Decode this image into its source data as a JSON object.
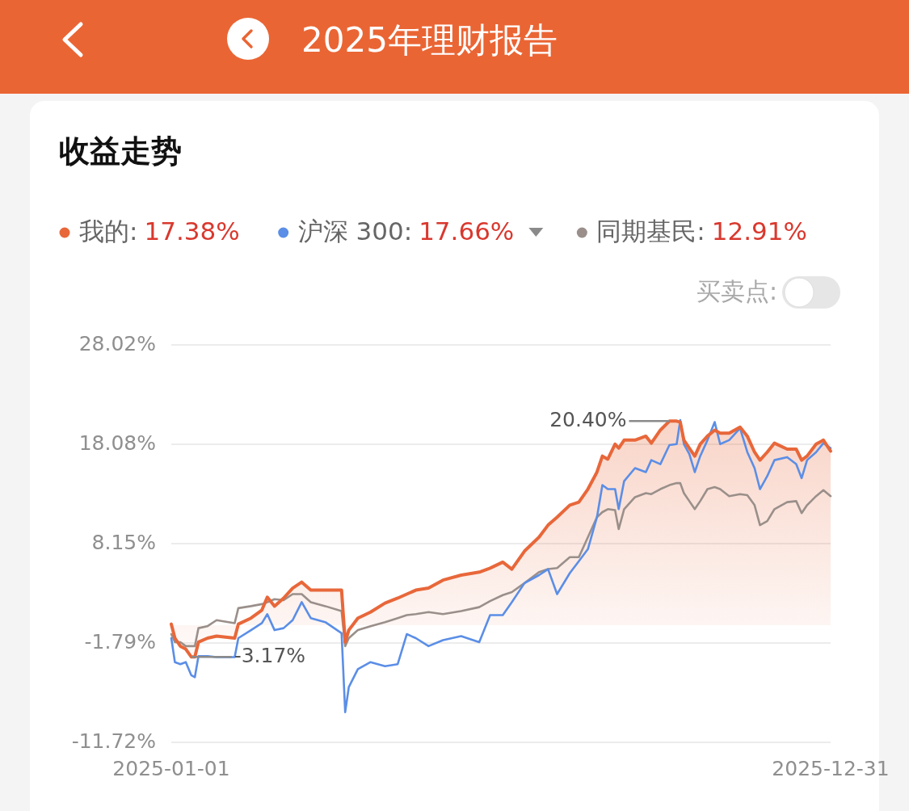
{
  "chart_data": {
    "type": "line",
    "title": "2025年理财报告",
    "subtitle": "收益走势",
    "x": [
      "2025-01-01",
      "2025-01-03",
      "2025-01-06",
      "2025-01-09",
      "2025-01-12",
      "2025-01-14",
      "2025-01-16",
      "2025-01-21",
      "2025-01-26",
      "2025-02-05",
      "2025-02-07",
      "2025-02-14",
      "2025-02-20",
      "2025-02-23",
      "2025-02-27",
      "2025-03-04",
      "2025-03-09",
      "2025-03-14",
      "2025-03-19",
      "2025-03-27",
      "2025-04-05",
      "2025-04-07",
      "2025-04-09",
      "2025-04-14",
      "2025-04-21",
      "2025-04-29",
      "2025-05-06",
      "2025-05-11",
      "2025-05-16",
      "2025-05-23",
      "2025-05-31",
      "2025-06-10",
      "2025-06-20",
      "2025-06-26",
      "2025-07-03",
      "2025-07-08",
      "2025-07-15",
      "2025-07-23",
      "2025-07-28",
      "2025-08-02",
      "2025-08-09",
      "2025-08-14",
      "2025-08-19",
      "2025-08-24",
      "2025-08-27",
      "2025-08-30",
      "2025-09-03",
      "2025-09-05",
      "2025-09-08",
      "2025-09-14",
      "2025-09-20",
      "2025-09-23",
      "2025-09-28",
      "2025-10-03",
      "2025-10-07",
      "2025-10-09",
      "2025-10-11",
      "2025-10-14",
      "2025-10-17",
      "2025-10-20",
      "2025-10-24",
      "2025-10-28",
      "2025-10-31",
      "2025-11-05",
      "2025-11-11",
      "2025-11-15",
      "2025-11-19",
      "2025-11-22",
      "2025-11-26",
      "2025-11-30",
      "2025-12-07",
      "2025-12-12",
      "2025-12-15",
      "2025-12-18",
      "2025-12-23",
      "2025-12-27",
      "2025-12-31"
    ],
    "series": [
      {
        "name": "我的:",
        "type": "area",
        "color": "#e8673a",
        "values": [
          0.1,
          -1.3,
          -2.1,
          -2.4,
          -3.17,
          -3.17,
          -1.7,
          -1.3,
          -1.1,
          -1.3,
          0.1,
          0.7,
          1.5,
          2.8,
          1.9,
          2.7,
          3.7,
          4.3,
          3.5,
          3.5,
          3.5,
          -1.7,
          -0.5,
          0.7,
          1.3,
          2.2,
          2.7,
          3.1,
          3.5,
          3.7,
          4.5,
          5.0,
          5.3,
          5.7,
          6.3,
          5.6,
          7.4,
          8.8,
          10.0,
          10.8,
          12.0,
          12.3,
          13.6,
          15.3,
          16.9,
          16.6,
          18.1,
          17.7,
          18.5,
          18.5,
          18.9,
          18.2,
          19.5,
          20.4,
          20.4,
          20.3,
          18.5,
          17.7,
          16.9,
          18.1,
          18.9,
          19.5,
          19.2,
          19.2,
          19.8,
          18.9,
          17.3,
          16.5,
          17.3,
          18.2,
          17.6,
          17.6,
          16.5,
          16.9,
          18.1,
          18.5,
          17.4
        ]
      },
      {
        "name": "沪深 300:",
        "type": "line",
        "color": "#5b8ee6",
        "values": [
          -1.3,
          -3.7,
          -3.9,
          -3.7,
          -5.0,
          -5.2,
          -3.1,
          -3.1,
          -3.2,
          -3.2,
          -1.3,
          -0.5,
          0.2,
          1.1,
          -0.5,
          -0.3,
          0.5,
          2.3,
          0.7,
          0.3,
          -0.8,
          -8.7,
          -6.2,
          -4.4,
          -3.7,
          -4.1,
          -3.9,
          -0.9,
          -1.3,
          -2.1,
          -1.5,
          -1.1,
          -1.7,
          1.0,
          1.0,
          2.3,
          4.2,
          5.0,
          5.6,
          3.1,
          5.2,
          6.4,
          7.6,
          10.8,
          14.0,
          13.6,
          13.6,
          11.6,
          14.4,
          15.7,
          15.3,
          16.5,
          16.1,
          18.0,
          18.1,
          20.5,
          18.1,
          17.1,
          15.3,
          16.9,
          18.5,
          20.3,
          18.1,
          18.5,
          19.7,
          17.3,
          15.7,
          13.6,
          14.9,
          16.5,
          16.8,
          16.1,
          14.7,
          16.5,
          17.3,
          18.2,
          17.7
        ]
      },
      {
        "name": "同期基民:",
        "type": "line",
        "color": "#9a8f8a",
        "values": [
          -0.9,
          -1.7,
          -1.7,
          -2.1,
          -2.1,
          -2.1,
          -0.3,
          -0.1,
          0.5,
          0.2,
          1.7,
          1.9,
          2.1,
          2.3,
          2.6,
          2.5,
          3.1,
          3.1,
          2.3,
          1.9,
          1.4,
          -2.1,
          -1.3,
          -0.5,
          -0.1,
          0.3,
          0.7,
          1.0,
          1.1,
          1.3,
          1.1,
          1.4,
          1.8,
          2.4,
          3.0,
          3.3,
          4.2,
          5.3,
          5.6,
          5.7,
          6.8,
          6.8,
          8.8,
          10.8,
          11.3,
          11.6,
          11.5,
          9.6,
          11.6,
          12.8,
          13.2,
          13.1,
          13.6,
          14.0,
          14.2,
          14.2,
          13.2,
          12.4,
          11.6,
          12.4,
          13.6,
          13.8,
          13.6,
          12.9,
          13.1,
          13.0,
          12.0,
          10.0,
          10.4,
          11.6,
          12.3,
          12.4,
          11.2,
          12.0,
          12.9,
          13.5,
          12.9
        ]
      }
    ],
    "xlim": [
      "2025-01-01",
      "2025-12-31"
    ],
    "xticks": [
      {
        "value": "2025-01-01",
        "label": "2025-01-01"
      },
      {
        "value": "2025-12-31",
        "label": "2025-12-31"
      }
    ],
    "ylim": [
      -11.72,
      28.02
    ],
    "yticks": [
      {
        "value": -11.72,
        "label": "-11.72%"
      },
      {
        "value": -1.79,
        "label": "-1.79%"
      },
      {
        "value": 8.15,
        "label": "8.15%"
      },
      {
        "value": 18.08,
        "label": "18.08%"
      },
      {
        "value": 28.02,
        "label": "28.02%"
      }
    ],
    "grid": "y",
    "legend": "top",
    "annotations": [
      {
        "text": "20.40%",
        "x": "2025-10-03",
        "y": 20.4
      },
      {
        "text": "-3.17%",
        "x": "2025-01-12",
        "y": -3.17
      },
      "买卖点:",
      "17.38%",
      "17.66%",
      "12.91%"
    ]
  }
}
